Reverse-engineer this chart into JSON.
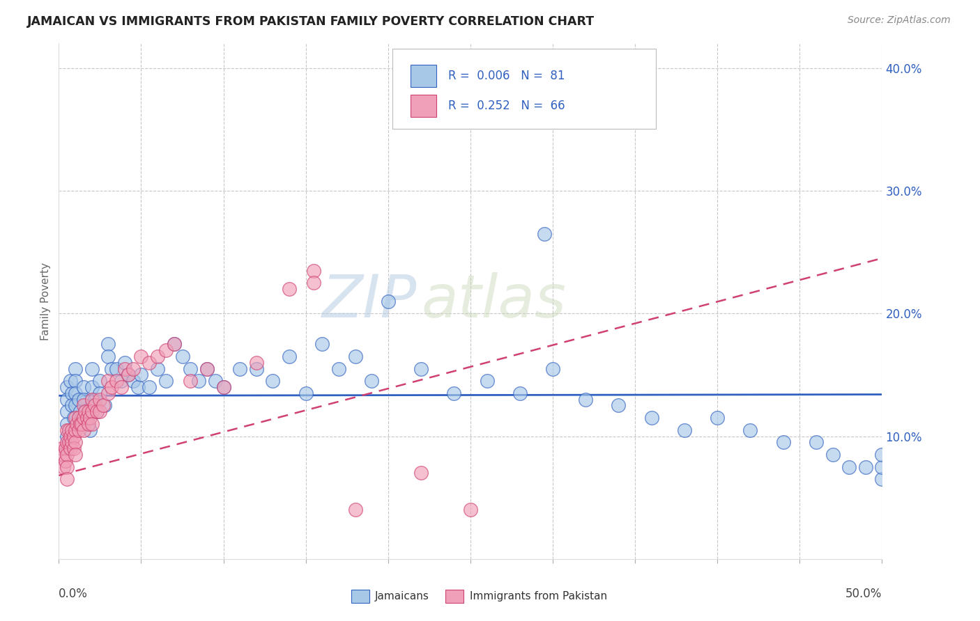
{
  "title": "JAMAICAN VS IMMIGRANTS FROM PAKISTAN FAMILY POVERTY CORRELATION CHART",
  "source": "Source: ZipAtlas.com",
  "ylabel": "Family Poverty",
  "xmin": 0.0,
  "xmax": 0.5,
  "ymin": 0.0,
  "ymax": 0.42,
  "color_blue": "#A8C8E8",
  "color_pink": "#F0A0B8",
  "color_blue_dark": "#3060C0",
  "color_pink_dark": "#D04070",
  "watermark_color": "#C8D8E8",
  "blue_trend_y0": 0.133,
  "blue_trend_y1": 0.134,
  "pink_trend_y0": 0.068,
  "pink_trend_y1": 0.245,
  "blue_x": [
    0.005,
    0.005,
    0.005,
    0.005,
    0.005,
    0.005,
    0.007,
    0.008,
    0.008,
    0.009,
    0.01,
    0.01,
    0.01,
    0.01,
    0.012,
    0.013,
    0.014,
    0.015,
    0.015,
    0.016,
    0.017,
    0.018,
    0.019,
    0.02,
    0.02,
    0.02,
    0.022,
    0.023,
    0.025,
    0.025,
    0.028,
    0.03,
    0.03,
    0.032,
    0.035,
    0.038,
    0.04,
    0.042,
    0.045,
    0.048,
    0.05,
    0.055,
    0.06,
    0.065,
    0.07,
    0.075,
    0.08,
    0.085,
    0.09,
    0.095,
    0.1,
    0.11,
    0.12,
    0.13,
    0.14,
    0.15,
    0.16,
    0.17,
    0.18,
    0.19,
    0.2,
    0.22,
    0.24,
    0.26,
    0.28,
    0.3,
    0.32,
    0.34,
    0.36,
    0.38,
    0.4,
    0.42,
    0.44,
    0.46,
    0.47,
    0.48,
    0.49,
    0.5,
    0.5,
    0.5,
    0.295
  ],
  "blue_y": [
    0.14,
    0.13,
    0.12,
    0.11,
    0.1,
    0.09,
    0.145,
    0.135,
    0.125,
    0.115,
    0.155,
    0.145,
    0.135,
    0.125,
    0.13,
    0.12,
    0.115,
    0.14,
    0.13,
    0.12,
    0.115,
    0.11,
    0.105,
    0.155,
    0.14,
    0.125,
    0.13,
    0.12,
    0.145,
    0.135,
    0.125,
    0.175,
    0.165,
    0.155,
    0.155,
    0.145,
    0.16,
    0.15,
    0.145,
    0.14,
    0.15,
    0.14,
    0.155,
    0.145,
    0.175,
    0.165,
    0.155,
    0.145,
    0.155,
    0.145,
    0.14,
    0.155,
    0.155,
    0.145,
    0.165,
    0.135,
    0.175,
    0.155,
    0.165,
    0.145,
    0.21,
    0.155,
    0.135,
    0.145,
    0.135,
    0.155,
    0.13,
    0.125,
    0.115,
    0.105,
    0.115,
    0.105,
    0.095,
    0.095,
    0.085,
    0.075,
    0.075,
    0.065,
    0.075,
    0.085,
    0.265
  ],
  "pink_x": [
    0.002,
    0.003,
    0.003,
    0.004,
    0.004,
    0.005,
    0.005,
    0.005,
    0.005,
    0.005,
    0.006,
    0.006,
    0.007,
    0.007,
    0.008,
    0.008,
    0.009,
    0.009,
    0.01,
    0.01,
    0.01,
    0.01,
    0.011,
    0.012,
    0.012,
    0.013,
    0.014,
    0.015,
    0.015,
    0.015,
    0.016,
    0.017,
    0.018,
    0.018,
    0.019,
    0.02,
    0.02,
    0.02,
    0.022,
    0.023,
    0.025,
    0.025,
    0.027,
    0.03,
    0.03,
    0.032,
    0.035,
    0.038,
    0.04,
    0.042,
    0.045,
    0.05,
    0.055,
    0.06,
    0.065,
    0.07,
    0.08,
    0.09,
    0.1,
    0.12,
    0.14,
    0.155,
    0.155,
    0.18,
    0.22,
    0.25
  ],
  "pink_y": [
    0.09,
    0.085,
    0.075,
    0.09,
    0.08,
    0.105,
    0.095,
    0.085,
    0.075,
    0.065,
    0.105,
    0.095,
    0.1,
    0.09,
    0.105,
    0.095,
    0.1,
    0.09,
    0.115,
    0.105,
    0.095,
    0.085,
    0.11,
    0.115,
    0.105,
    0.11,
    0.11,
    0.125,
    0.115,
    0.105,
    0.12,
    0.115,
    0.12,
    0.11,
    0.115,
    0.13,
    0.12,
    0.11,
    0.125,
    0.12,
    0.13,
    0.12,
    0.125,
    0.145,
    0.135,
    0.14,
    0.145,
    0.14,
    0.155,
    0.15,
    0.155,
    0.165,
    0.16,
    0.165,
    0.17,
    0.175,
    0.145,
    0.155,
    0.14,
    0.16,
    0.22,
    0.235,
    0.225,
    0.04,
    0.07,
    0.04
  ]
}
